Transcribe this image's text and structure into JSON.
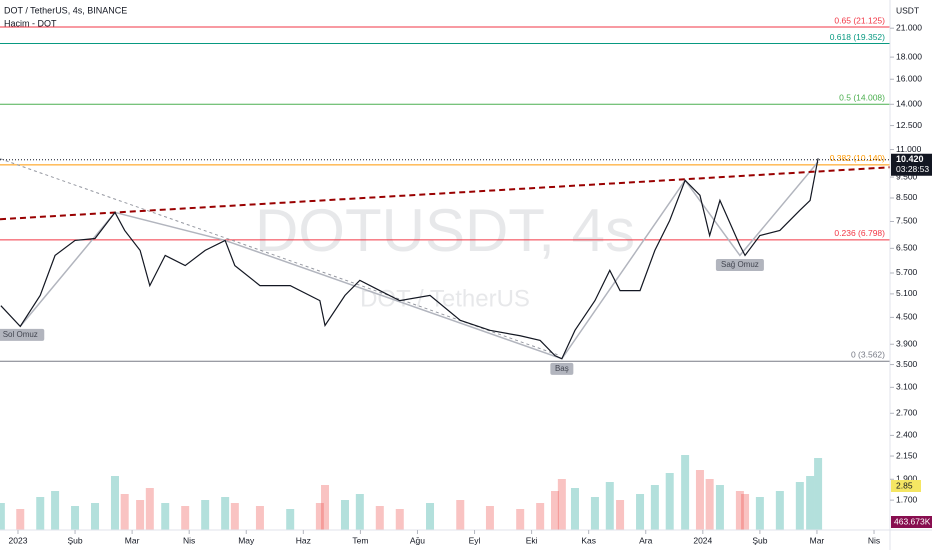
{
  "chart_data": {
    "type": "line",
    "title": "DOT / TetherUS, 4s, BINANCE",
    "subtitle": "Hacim - DOT",
    "watermark": "DOTUSDT, 4s",
    "watermark_sub": "DOT / TetherUS",
    "currency": "USDT",
    "log_scale": true,
    "color": "#131722",
    "x": [
      -0.3,
      0.04,
      0.39,
      0.65,
      1.0,
      1.35,
      1.7,
      1.87,
      2.14,
      2.31,
      2.58,
      2.93,
      3.28,
      3.63,
      3.8,
      4.24,
      4.77,
      5.29,
      5.38,
      5.73,
      5.99,
      6.34,
      6.69,
      7.22,
      7.75,
      8.27,
      8.8,
      9.15,
      9.41,
      9.53,
      9.76,
      10.11,
      10.37,
      10.55,
      10.9,
      11.16,
      11.42,
      11.69,
      11.95,
      12.12,
      12.3,
      12.65,
      12.74,
      13.0,
      13.35,
      13.7,
      13.88,
      14.02
    ],
    "values": [
      4.79,
      4.29,
      5.06,
      6.26,
      6.78,
      6.85,
      7.87,
      7.15,
      6.43,
      5.33,
      6.26,
      5.93,
      6.43,
      6.78,
      5.93,
      5.33,
      5.33,
      4.92,
      4.31,
      5.06,
      5.48,
      5.19,
      4.92,
      5.06,
      4.43,
      4.2,
      4.08,
      3.98,
      3.67,
      3.61,
      4.2,
      4.92,
      5.78,
      5.19,
      5.19,
      6.43,
      7.54,
      9.34,
      8.62,
      6.96,
      8.39,
      6.6,
      6.26,
      6.96,
      7.15,
      7.96,
      8.39,
      10.5
    ],
    "volume": [
      900,
      700,
      1100,
      1300,
      800,
      900,
      1800,
      1200,
      1000,
      1400,
      900,
      800,
      1000,
      1100,
      900,
      800,
      700,
      900,
      1500,
      1000,
      1200,
      800,
      700,
      900,
      1000,
      800,
      700,
      900,
      1300,
      1700,
      1400,
      1100,
      1600,
      1000,
      1200,
      1500,
      1900,
      2500,
      2000,
      1700,
      1500,
      1300,
      1200,
      1100,
      1300,
      1600,
      1800,
      2400
    ],
    "volume_lim": [
      0,
      5000
    ],
    "volume_label": "463.673K",
    "volume_badge": "2.85",
    "last_price": {
      "value": 10.42,
      "label": "10.420"
    },
    "countdown": "03:28:53",
    "xlim": [
      -0.315,
      15.28
    ],
    "ylim": [
      1.45,
      24.4
    ],
    "xticks": [
      {
        "value": 0,
        "label": "2023"
      },
      {
        "value": 1,
        "label": "Şub"
      },
      {
        "value": 2,
        "label": "Mar"
      },
      {
        "value": 3,
        "label": "Nis"
      },
      {
        "value": 4,
        "label": "May"
      },
      {
        "value": 5,
        "label": "Haz"
      },
      {
        "value": 6,
        "label": "Tem"
      },
      {
        "value": 7,
        "label": "Ağu"
      },
      {
        "value": 8,
        "label": "Eyl"
      },
      {
        "value": 9,
        "label": "Eki"
      },
      {
        "value": 10,
        "label": "Kas"
      },
      {
        "value": 11,
        "label": "Ara"
      },
      {
        "value": 12,
        "label": "2024"
      },
      {
        "value": 13,
        "label": "Şub"
      },
      {
        "value": 14,
        "label": "Mar"
      },
      {
        "value": 15,
        "label": "Nis"
      }
    ],
    "yticks": [
      {
        "value": 1.7,
        "label": "1.700"
      },
      {
        "value": 1.9,
        "label": "1.900"
      },
      {
        "value": 2.15,
        "label": "2.150"
      },
      {
        "value": 2.4,
        "label": "2.400"
      },
      {
        "value": 2.7,
        "label": "2.700"
      },
      {
        "value": 3.1,
        "label": "3.100"
      },
      {
        "value": 3.5,
        "label": "3.500"
      },
      {
        "value": 3.9,
        "label": "3.900"
      },
      {
        "value": 4.5,
        "label": "4.500"
      },
      {
        "value": 5.1,
        "label": "5.100"
      },
      {
        "value": 5.7,
        "label": "5.700"
      },
      {
        "value": 6.5,
        "label": "6.500"
      },
      {
        "value": 7.5,
        "label": "7.500"
      },
      {
        "value": 8.5,
        "label": "8.500"
      },
      {
        "value": 9.5,
        "label": "9.500"
      },
      {
        "value": 11,
        "label": "11.000"
      },
      {
        "value": 12.5,
        "label": "12.500"
      },
      {
        "value": 14,
        "label": "14.000"
      },
      {
        "value": 16,
        "label": "16.000"
      },
      {
        "value": 18,
        "label": "18.000"
      },
      {
        "value": 21,
        "label": "21.000"
      }
    ],
    "fib": [
      {
        "label": "0 (3.562)",
        "value": 3.562,
        "color": "#787b86"
      },
      {
        "label": "0.236 (6.798)",
        "value": 6.798,
        "color": "#f23645"
      },
      {
        "label": "0.382 (10.140)",
        "value": 10.14,
        "color": "#ff9800"
      },
      {
        "label": "0.5 (14.008)",
        "value": 14.008,
        "color": "#4caf50"
      },
      {
        "label": "0.618 (19.352)",
        "value": 19.352,
        "color": "#089981"
      },
      {
        "label": "0.65 (21.125)",
        "value": 21.125,
        "color": "#f23645"
      }
    ],
    "neckline": {
      "x": [
        -0.315,
        15.28
      ],
      "values": [
        7.59,
        10.01
      ],
      "color": "#990000"
    },
    "trend": {
      "x": [
        -0.315,
        9.5
      ],
      "values": [
        10.48,
        3.67
      ],
      "color": "#9598a1"
    },
    "pattern": {
      "x": [
        0.04,
        1.7,
        3.63,
        9.53,
        11.69,
        12.65,
        14.02
      ],
      "values": [
        4.29,
        7.87,
        6.78,
        3.61,
        9.34,
        6.26,
        10.3
      ],
      "color": "#b2b5be"
    },
    "annotations": [
      {
        "text": "Sol Omuz",
        "x": 0.04,
        "value": 4.1
      },
      {
        "text": "Baş",
        "x": 9.53,
        "value": 3.42
      },
      {
        "text": "Sağ Omuz",
        "x": 12.65,
        "value": 5.95
      }
    ]
  }
}
